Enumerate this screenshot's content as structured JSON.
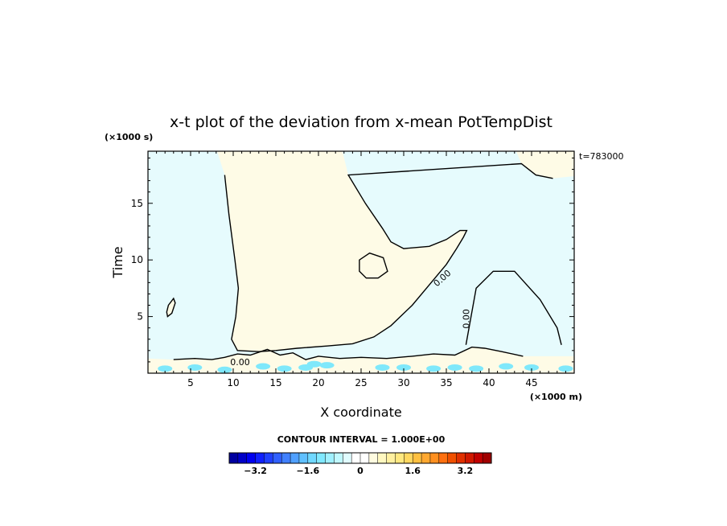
{
  "chart_data": {
    "type": "heatmap",
    "title": "x-t plot of the deviation from x-mean PotTempDist",
    "xlabel": "X coordinate",
    "ylabel": "Time",
    "x_unit": "(×1000 m)",
    "y_unit": "(×1000 s)",
    "time_label": "t=783000",
    "xlim": [
      0,
      50
    ],
    "ylim": [
      0,
      19.6
    ],
    "x_ticks": [
      5,
      10,
      15,
      20,
      25,
      30,
      35,
      40,
      45
    ],
    "y_ticks": [
      5,
      10,
      15
    ],
    "contour_interval_text": "CONTOUR INTERVAL = 1.000E+00",
    "contour_labels": [
      {
        "text": "0.00",
        "x": 34.5,
        "y": 8.4,
        "angle": -42
      },
      {
        "text": "0.00",
        "x": 37.3,
        "y": 4.8,
        "angle": -90
      },
      {
        "text": "0.00",
        "x": 10.8,
        "y": 1.0,
        "angle": 0
      }
    ],
    "negative_regions": [
      [
        [
          1.5,
          19.6
        ],
        [
          8.1,
          19.6
        ],
        [
          9.0,
          17.5
        ],
        [
          9.5,
          14.0
        ],
        [
          10.2,
          10.0
        ],
        [
          10.6,
          7.5
        ],
        [
          10.3,
          5.0
        ],
        [
          9.8,
          3.0
        ],
        [
          10.5,
          2.0
        ],
        [
          13.0,
          1.9
        ],
        [
          15.0,
          2.0
        ],
        [
          17.5,
          2.2
        ],
        [
          21.0,
          2.4
        ],
        [
          24.0,
          2.6
        ],
        [
          26.5,
          3.2
        ],
        [
          28.5,
          4.2
        ],
        [
          31.0,
          6.0
        ],
        [
          33.0,
          7.8
        ],
        [
          35.0,
          9.6
        ],
        [
          36.2,
          11.0
        ],
        [
          37.0,
          12.0
        ],
        [
          37.4,
          12.6
        ],
        [
          36.6,
          12.6
        ],
        [
          35.0,
          11.8
        ],
        [
          33.0,
          11.2
        ],
        [
          30.0,
          11.0
        ],
        [
          28.5,
          11.6
        ],
        [
          27.5,
          12.8
        ],
        [
          25.5,
          15.0
        ],
        [
          23.5,
          17.5
        ],
        [
          22.8,
          19.6
        ],
        [
          43.2,
          19.6
        ],
        [
          43.8,
          18.5
        ],
        [
          45.5,
          17.5
        ],
        [
          47.5,
          17.2
        ],
        [
          50,
          17.4
        ],
        [
          50,
          0
        ],
        [
          0,
          0
        ],
        [
          0,
          19.6
        ]
      ],
      [
        [
          37.3,
          2.5
        ],
        [
          38.5,
          7.5
        ],
        [
          40.5,
          9.0
        ],
        [
          43.0,
          9.0
        ],
        [
          46.0,
          6.5
        ],
        [
          48.0,
          4.0
        ],
        [
          48.5,
          2.5
        ]
      ]
    ],
    "positive_regions": [
      [
        [
          24.8,
          9.0
        ],
        [
          25.6,
          8.4
        ],
        [
          27.0,
          8.4
        ],
        [
          28.1,
          9.0
        ],
        [
          27.6,
          10.2
        ],
        [
          26.0,
          10.6
        ],
        [
          24.8,
          10.0
        ]
      ],
      [
        [
          2.3,
          5.0
        ],
        [
          2.8,
          5.3
        ],
        [
          3.2,
          6.2
        ],
        [
          3.0,
          6.6
        ],
        [
          2.4,
          6.0
        ],
        [
          2.2,
          5.4
        ]
      ],
      [
        [
          0,
          0
        ],
        [
          50,
          0
        ],
        [
          50,
          1.5
        ],
        [
          44.0,
          1.5
        ],
        [
          41.5,
          1.9
        ],
        [
          39.5,
          2.2
        ],
        [
          38.0,
          2.3
        ],
        [
          36.0,
          1.6
        ],
        [
          33.5,
          1.7
        ],
        [
          31.0,
          1.5
        ],
        [
          28.0,
          1.3
        ],
        [
          25.0,
          1.4
        ],
        [
          22.5,
          1.3
        ],
        [
          20.0,
          1.5
        ],
        [
          18.5,
          1.2
        ],
        [
          17.0,
          1.8
        ],
        [
          15.5,
          1.6
        ],
        [
          14.0,
          2.1
        ],
        [
          12.0,
          1.6
        ],
        [
          10.5,
          1.7
        ],
        [
          9.0,
          1.4
        ],
        [
          7.5,
          1.2
        ],
        [
          5.5,
          1.3
        ],
        [
          3.0,
          1.2
        ],
        [
          0,
          1.3
        ]
      ]
    ],
    "strong_negative_patches": [
      [
        2.0,
        0.4
      ],
      [
        5.5,
        0.5
      ],
      [
        9.0,
        0.3
      ],
      [
        13.5,
        0.6
      ],
      [
        16.0,
        0.4
      ],
      [
        18.5,
        0.5
      ],
      [
        19.5,
        0.8
      ],
      [
        21.0,
        0.7
      ],
      [
        27.5,
        0.5
      ],
      [
        30.0,
        0.5
      ],
      [
        33.5,
        0.4
      ],
      [
        36.0,
        0.5
      ],
      [
        38.5,
        0.4
      ],
      [
        42.0,
        0.6
      ],
      [
        45.0,
        0.5
      ],
      [
        49.0,
        0.4
      ]
    ],
    "colorbar": {
      "min": -4.0,
      "max": 4.0,
      "step": 0.2,
      "tick_values": [
        -3.2,
        -1.6,
        0,
        1.6,
        3.2
      ],
      "tick_labels": [
        "−3.2",
        "−1.6",
        "0",
        "1.6",
        "3.2"
      ],
      "colors": [
        "#0000a0",
        "#0000c8",
        "#0000f0",
        "#1020ff",
        "#2040ff",
        "#3060ff",
        "#4080ff",
        "#50a0ff",
        "#60c0ff",
        "#70d8ff",
        "#80e8ff",
        "#a0f0ff",
        "#c0f8ff",
        "#e0fcff",
        "#ffffff",
        "#ffffff",
        "#fffce0",
        "#fff8c0",
        "#fff0a0",
        "#ffe880",
        "#ffd860",
        "#ffc040",
        "#ffa830",
        "#ff9020",
        "#ff7010",
        "#f05000",
        "#e03000",
        "#d01800",
        "#c00000",
        "#a00000"
      ]
    },
    "fill_colors": {
      "negative": "#e6fbfd",
      "positive": "#fefbe6",
      "strong_negative": "#7fe8fb",
      "strong_positive": "#fff0b0"
    }
  }
}
